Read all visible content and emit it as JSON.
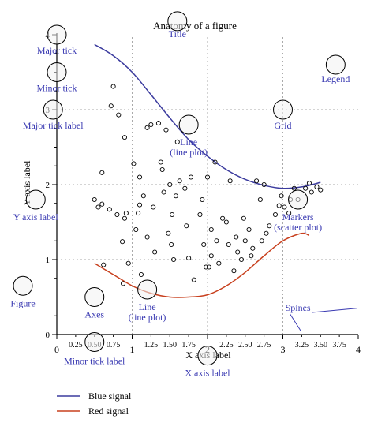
{
  "chart_data": {
    "type": "line",
    "title": "Anatomy of a figure",
    "xlabel": "X axis label",
    "ylabel": "Y axis label",
    "xlim": [
      0,
      4
    ],
    "ylim": [
      0,
      4
    ],
    "grid": true,
    "legend_position": "bottom-left",
    "x_major_ticks": [
      {
        "value": 0,
        "label": "0"
      },
      {
        "value": 1,
        "label": "1"
      },
      {
        "value": 2,
        "label": "2"
      },
      {
        "value": 3,
        "label": "3"
      },
      {
        "value": 4,
        "label": "4"
      }
    ],
    "x_minor_ticks": [
      {
        "value": 0.25,
        "label": "0.25"
      },
      {
        "value": 0.5,
        "label": "0.50"
      },
      {
        "value": 0.75,
        "label": "0.75"
      },
      {
        "value": 1.25,
        "label": "1.25"
      },
      {
        "value": 1.5,
        "label": "1.50"
      },
      {
        "value": 1.75,
        "label": "1.75"
      },
      {
        "value": 2.25,
        "label": "2.25"
      },
      {
        "value": 2.5,
        "label": "2.50"
      },
      {
        "value": 2.75,
        "label": "2.75"
      },
      {
        "value": 3.25,
        "label": "3.25"
      },
      {
        "value": 3.5,
        "label": "3.50"
      },
      {
        "value": 3.75,
        "label": "3.75"
      }
    ],
    "y_major_ticks": [
      {
        "value": 0,
        "label": "0"
      },
      {
        "value": 1,
        "label": "1"
      },
      {
        "value": 2,
        "label": "2"
      },
      {
        "value": 3,
        "label": "3"
      },
      {
        "value": 4,
        "label": "4"
      }
    ],
    "y_minor_ticks": [
      0.25,
      0.5,
      0.75,
      1.25,
      1.5,
      1.75,
      2.25,
      2.5,
      2.75,
      3.25,
      3.5,
      3.75
    ],
    "series": [
      {
        "name": "Blue signal",
        "color": "#3b3b9e",
        "x": [
          0.5,
          0.75,
          1.0,
          1.25,
          1.5,
          1.75,
          2.0,
          2.25,
          2.5,
          2.75,
          3.0,
          3.25,
          3.5
        ],
        "y": [
          3.87,
          3.72,
          3.5,
          3.2,
          2.89,
          2.6,
          2.38,
          2.2,
          2.07,
          1.99,
          1.95,
          1.97,
          2.03
        ]
      },
      {
        "name": "Red signal",
        "color": "#c8401e",
        "x": [
          0.5,
          0.75,
          1.0,
          1.25,
          1.5,
          1.75,
          2.0,
          2.25,
          2.5,
          2.75,
          3.0,
          3.25,
          3.35
        ],
        "y": [
          0.95,
          0.8,
          0.65,
          0.55,
          0.5,
          0.5,
          0.53,
          0.65,
          0.83,
          1.05,
          1.25,
          1.35,
          1.32
        ]
      }
    ],
    "scatter": {
      "name": "Markers",
      "points": [
        [
          0.5,
          1.8
        ],
        [
          0.55,
          1.7
        ],
        [
          0.6,
          1.74
        ],
        [
          0.6,
          2.16
        ],
        [
          0.62,
          0.93
        ],
        [
          0.7,
          1.67
        ],
        [
          0.72,
          3.05
        ],
        [
          0.75,
          3.31
        ],
        [
          0.8,
          1.6
        ],
        [
          0.82,
          2.93
        ],
        [
          0.87,
          1.24
        ],
        [
          0.88,
          0.68
        ],
        [
          0.9,
          2.63
        ],
        [
          0.9,
          1.55
        ],
        [
          0.92,
          1.62
        ],
        [
          0.95,
          0.95
        ],
        [
          1.02,
          2.28
        ],
        [
          1.05,
          1.4
        ],
        [
          1.08,
          1.62
        ],
        [
          1.1,
          2.1
        ],
        [
          1.1,
          1.73
        ],
        [
          1.12,
          0.8
        ],
        [
          1.15,
          1.85
        ],
        [
          1.2,
          2.76
        ],
        [
          1.2,
          1.3
        ],
        [
          1.25,
          2.8
        ],
        [
          1.28,
          1.7
        ],
        [
          1.3,
          1.1
        ],
        [
          1.35,
          2.82
        ],
        [
          1.38,
          2.3
        ],
        [
          1.4,
          2.2
        ],
        [
          1.42,
          1.9
        ],
        [
          1.45,
          2.73
        ],
        [
          1.48,
          1.35
        ],
        [
          1.5,
          2.0
        ],
        [
          1.52,
          1.2
        ],
        [
          1.53,
          1.6
        ],
        [
          1.55,
          1.0
        ],
        [
          1.58,
          1.85
        ],
        [
          1.6,
          2.57
        ],
        [
          1.63,
          2.05
        ],
        [
          1.7,
          1.95
        ],
        [
          1.72,
          1.45
        ],
        [
          1.75,
          1.02
        ],
        [
          1.78,
          2.1
        ],
        [
          1.82,
          0.73
        ],
        [
          1.9,
          1.6
        ],
        [
          1.93,
          1.8
        ],
        [
          1.95,
          1.2
        ],
        [
          1.98,
          0.9
        ],
        [
          2.0,
          2.1
        ],
        [
          2.02,
          0.9
        ],
        [
          2.05,
          1.4
        ],
        [
          2.05,
          1.05
        ],
        [
          2.1,
          2.3
        ],
        [
          2.12,
          1.25
        ],
        [
          2.15,
          0.95
        ],
        [
          2.2,
          1.55
        ],
        [
          2.25,
          1.5
        ],
        [
          2.28,
          1.2
        ],
        [
          2.3,
          2.05
        ],
        [
          2.35,
          0.85
        ],
        [
          2.38,
          1.3
        ],
        [
          2.4,
          1.1
        ],
        [
          2.45,
          1.0
        ],
        [
          2.48,
          1.55
        ],
        [
          2.5,
          1.25
        ],
        [
          2.55,
          1.4
        ],
        [
          2.58,
          1.05
        ],
        [
          2.6,
          1.15
        ],
        [
          2.65,
          2.05
        ],
        [
          2.7,
          1.8
        ],
        [
          2.72,
          1.25
        ],
        [
          2.75,
          2.0
        ],
        [
          2.78,
          1.35
        ],
        [
          2.82,
          1.45
        ],
        [
          2.9,
          1.6
        ],
        [
          2.95,
          1.72
        ],
        [
          2.98,
          1.85
        ],
        [
          3.02,
          1.7
        ],
        [
          3.08,
          1.62
        ],
        [
          3.1,
          1.8
        ],
        [
          3.15,
          1.95
        ],
        [
          3.2,
          1.8
        ],
        [
          3.3,
          1.95
        ],
        [
          3.35,
          2.02
        ],
        [
          3.38,
          1.9
        ],
        [
          3.45,
          1.97
        ],
        [
          3.5,
          1.93
        ]
      ]
    },
    "annotations": [
      {
        "text": "Title",
        "target": [
          1.6,
          4.18
        ]
      },
      {
        "text": "Legend",
        "target": [
          3.7,
          3.6
        ]
      },
      {
        "text": "Major tick",
        "target": [
          0.0,
          4.0
        ]
      },
      {
        "text": "Minor tick",
        "target": [
          0.0,
          3.5
        ]
      },
      {
        "text": "Major tick label",
        "target": [
          -0.05,
          3.0
        ]
      },
      {
        "text": "Grid",
        "target": [
          3.0,
          3.0
        ]
      },
      {
        "text": "Line\n(line plot)",
        "target": [
          1.75,
          2.8
        ]
      },
      {
        "text": "Y axis label",
        "target": [
          -0.28,
          1.8
        ]
      },
      {
        "text": "Markers\n(scatter plot)",
        "target": [
          3.2,
          1.8
        ]
      },
      {
        "text": "Figure",
        "target": [
          -0.45,
          0.65
        ]
      },
      {
        "text": "Axes",
        "target": [
          0.5,
          0.5
        ]
      },
      {
        "text": "Line\n(line plot)",
        "target": [
          1.2,
          0.6
        ]
      },
      {
        "text": "Spines",
        "target": [
          3.2,
          0.0
        ]
      },
      {
        "text": "Minor tick label",
        "target": [
          0.5,
          -0.1
        ]
      },
      {
        "text": "X axis label",
        "target": [
          2.0,
          -0.28
        ]
      }
    ]
  },
  "colors": {
    "annotation_text": "#3a3ab2",
    "marker_circle_fill": "#f2f2f2",
    "axis": "#000000",
    "grid": "#aaaaaa"
  }
}
